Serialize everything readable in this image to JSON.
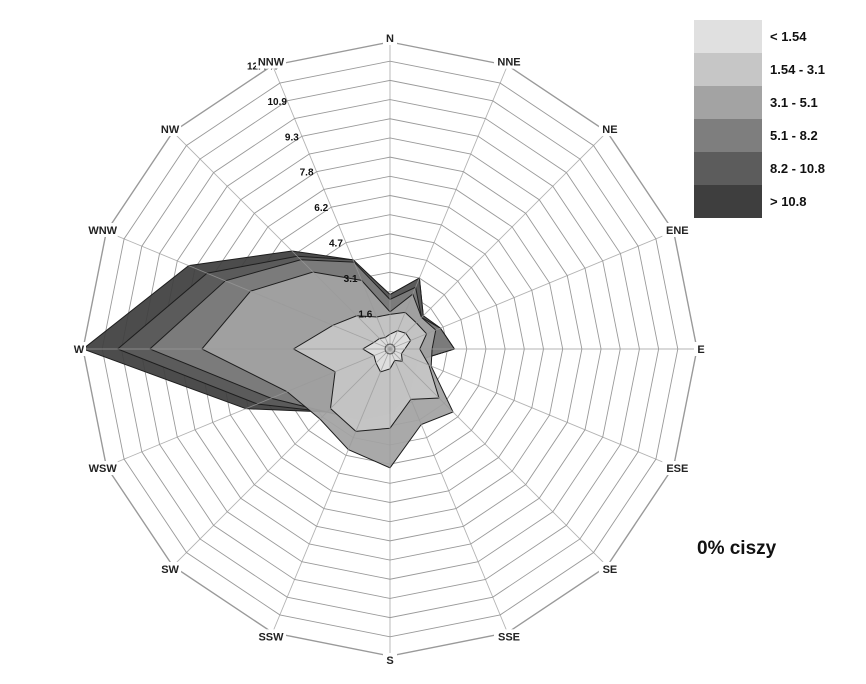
{
  "chart_data": {
    "type": "windrose",
    "directions": [
      "N",
      "NNE",
      "NE",
      "ENE",
      "E",
      "ESE",
      "SE",
      "SSE",
      "S",
      "SSW",
      "SW",
      "WSW",
      "W",
      "WNW",
      "NW",
      "NNW"
    ],
    "radial_axis": {
      "max": 12.4,
      "ring_count": 16,
      "tick_labels": [
        "1.6",
        "3.1",
        "4.7",
        "6.2",
        "7.8",
        "9.3",
        "10.9",
        "12.4 %"
      ],
      "tick_values": [
        1.55,
        3.1,
        4.65,
        6.2,
        7.75,
        9.3,
        10.85,
        12.4
      ]
    },
    "series": [
      {
        "name": "> 10.8",
        "color": "#3e3e3e",
        "values": [
          2.2,
          3.1,
          1.9,
          2.2,
          2.6,
          1.2,
          1.4,
          2.0,
          2.6,
          3.1,
          3.6,
          6.3,
          12.4,
          8.8,
          5.6,
          3.9
        ]
      },
      {
        "name": "8.2 - 10.8",
        "color": "#5c5c5c",
        "values": [
          2.2,
          3.1,
          1.9,
          2.2,
          2.6,
          1.2,
          1.4,
          2.0,
          2.6,
          3.1,
          3.6,
          5.8,
          11.0,
          8.0,
          5.3,
          3.9
        ]
      },
      {
        "name": "5.1 - 8.2",
        "color": "#7e7e7e",
        "values": [
          2.0,
          2.7,
          1.8,
          2.2,
          2.6,
          1.2,
          1.4,
          2.0,
          2.6,
          3.1,
          3.6,
          5.2,
          9.7,
          7.2,
          5.1,
          3.8
        ]
      },
      {
        "name": "3.1 - 5.1",
        "color": "#a3a3a3",
        "values": [
          1.5,
          2.4,
          1.8,
          2.0,
          1.7,
          1.8,
          3.6,
          3.3,
          4.8,
          4.4,
          4.0,
          4.5,
          7.6,
          6.1,
          4.4,
          3.0
        ]
      },
      {
        "name": "1.54 - 3.1",
        "color": "#c6c6c6",
        "values": [
          1.4,
          1.6,
          1.5,
          1.6,
          1.2,
          1.7,
          2.8,
          2.2,
          3.2,
          3.6,
          3.4,
          2.4,
          3.9,
          2.5,
          1.9,
          1.4
        ]
      },
      {
        "name": "< 1.54",
        "color": "#e0e0e0",
        "values": [
          0.6,
          0.8,
          0.9,
          0.9,
          0.6,
          0.5,
          0.7,
          0.5,
          0.8,
          1.0,
          0.8,
          0.7,
          1.1,
          0.7,
          0.6,
          0.5
        ]
      },
      {
        "name": "",
        "color": "#ededed",
        "values": [
          0.2,
          0.2,
          0.2,
          0.2,
          0.2,
          0.2,
          0.2,
          0.2,
          0.2,
          0.2,
          0.2,
          0.2,
          0.2,
          0.2,
          0.2,
          0.2
        ]
      }
    ],
    "legend": {
      "position": "top-right"
    },
    "grid": true
  },
  "calm_text": "0% ciszy"
}
